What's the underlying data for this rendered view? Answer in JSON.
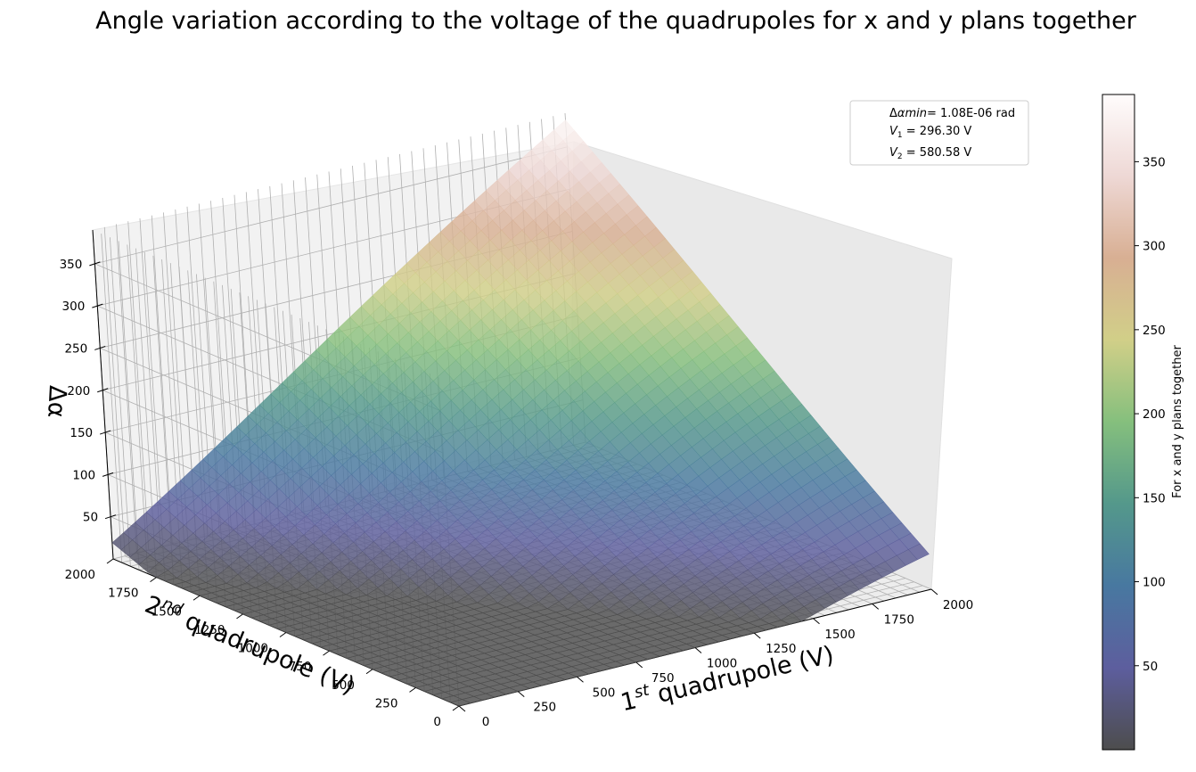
{
  "chart_data": {
    "type": "surface3d",
    "title": "Angle variation according to the voltage of the quadrupoles for x and y plans together",
    "xlabel": {
      "main": "1",
      "sup": "st",
      "rest": " quadrupole (V)"
    },
    "ylabel": {
      "main": "2",
      "sup": "nd",
      "rest": " quadrupole (V)"
    },
    "zlabel": "Δα",
    "xlim": [
      0,
      2000
    ],
    "ylim": [
      0,
      2000
    ],
    "zlim": [
      0,
      390
    ],
    "x_ticks": [
      "0",
      "250",
      "500",
      "750",
      "1000",
      "1250",
      "1500",
      "1750",
      "2000"
    ],
    "y_ticks": [
      "0",
      "250",
      "500",
      "750",
      "1000",
      "1250",
      "1500",
      "1750",
      "2000"
    ],
    "z_ticks": [
      "50",
      "100",
      "150",
      "200",
      "250",
      "300",
      "350"
    ],
    "surface_samples": [
      {
        "x": 0,
        "y": 0,
        "z": 10
      },
      {
        "x": 2000,
        "y": 0,
        "z": 62
      },
      {
        "x": 0,
        "y": 2000,
        "z": 57
      },
      {
        "x": 2000,
        "y": 2000,
        "z": 382
      },
      {
        "x": 296.3,
        "y": 580.58,
        "z": 0
      }
    ],
    "minimum": {
      "x": 296.3,
      "y": 580.58,
      "z": 1.08e-06
    },
    "legend": {
      "placement": "upper-right",
      "entries": [
        {
          "prefix": "Δ",
          "italic": "αmin",
          "suffix": "= 1.08E-06 rad"
        },
        {
          "sym": "V",
          "sub": "1",
          "suffix": " = 296.30 V"
        },
        {
          "sym": "V",
          "sub": "2",
          "suffix": " = 580.58 V"
        }
      ]
    },
    "colorbar": {
      "label": "For x and y plans together",
      "ticks": [
        "50",
        "100",
        "150",
        "200",
        "250",
        "300",
        "350"
      ],
      "range": [
        0,
        390
      ],
      "colormap": [
        "#4d4d4d",
        "#5d5e9e",
        "#4878a0",
        "#54988b",
        "#85bf7d",
        "#d1cf88",
        "#d8af93",
        "#eed8d5",
        "#fffcfc"
      ]
    }
  }
}
